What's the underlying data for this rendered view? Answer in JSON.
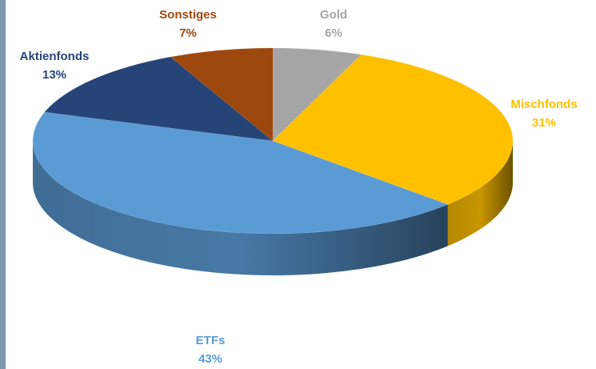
{
  "chart_data": {
    "type": "pie",
    "title": "",
    "slices": [
      {
        "name": "Gold",
        "label": "Gold",
        "value": 6,
        "value_label": "6%",
        "color": "#A5A5A5",
        "label_color": "#A5A5A5"
      },
      {
        "name": "Mischfonds",
        "label": "Mischfonds",
        "value": 31,
        "value_label": "31%",
        "color": "#FFC000",
        "label_color": "#FFC000"
      },
      {
        "name": "ETFs",
        "label": "ETFs",
        "value": 43,
        "value_label": "43%",
        "color": "#5B9BD5",
        "label_color": "#5B9BD5"
      },
      {
        "name": "Aktienfonds",
        "label": "Aktienfonds",
        "value": 13,
        "value_label": "13%",
        "color": "#264478",
        "label_color": "#264478"
      },
      {
        "name": "Sonstiges",
        "label": "Sonstiges",
        "value": 7,
        "value_label": "7%",
        "color": "#9E480E",
        "label_color": "#9E480E"
      }
    ],
    "style": "3d",
    "legend": "none",
    "data_labels": "outside"
  }
}
